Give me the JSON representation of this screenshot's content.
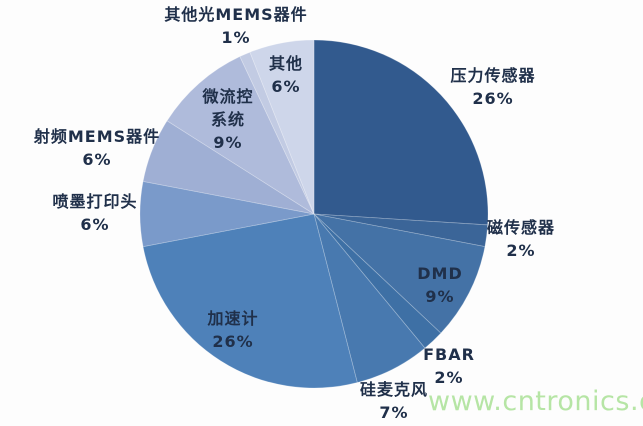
{
  "chart_data": {
    "type": "pie",
    "direction": "clockwise",
    "start_angle_deg": 0,
    "legend": "none",
    "palette_style": "monochromatic-blue",
    "slices": [
      {
        "key": "pressure-sensor",
        "label": "压力传感器",
        "value": 26,
        "pct_label": "26%",
        "color": "#325a8e"
      },
      {
        "key": "magnetic-sensor",
        "label": "磁传感器",
        "value": 2,
        "pct_label": "2%",
        "color": "#3b6598"
      },
      {
        "key": "dmd",
        "label": "DMD",
        "value": 9,
        "pct_label": "9%",
        "color": "#4472a6"
      },
      {
        "key": "fbar",
        "label": "FBAR",
        "value": 2,
        "pct_label": "2%",
        "color": "#3e70a5"
      },
      {
        "key": "silicon-microphone",
        "label": "硅麦克风",
        "value": 7,
        "pct_label": "7%",
        "color": "#4879af"
      },
      {
        "key": "accelerometer",
        "label": "加速计",
        "value": 26,
        "pct_label": "26%",
        "color": "#4e81b9"
      },
      {
        "key": "inkjet-printhead",
        "label": "喷墨打印头",
        "value": 6,
        "pct_label": "6%",
        "color": "#7a9aca"
      },
      {
        "key": "rf-mems",
        "label": "射频MEMS器件",
        "value": 6,
        "pct_label": "6%",
        "color": "#9fafd4"
      },
      {
        "key": "microfluidic",
        "label": "微流控系统",
        "value": 9,
        "pct_label": "9%",
        "color": "#afbbdb"
      },
      {
        "key": "other-optical-mems",
        "label": "其他光MEMS器件",
        "value": 1,
        "pct_label": "1%",
        "color": "#c2cbe3"
      },
      {
        "key": "other",
        "label": "其他",
        "value": 6,
        "pct_label": "6%",
        "color": "#ced6ea"
      }
    ]
  },
  "watermark": {
    "text": "www.cntronics.com",
    "color": "#b6e5a5"
  }
}
